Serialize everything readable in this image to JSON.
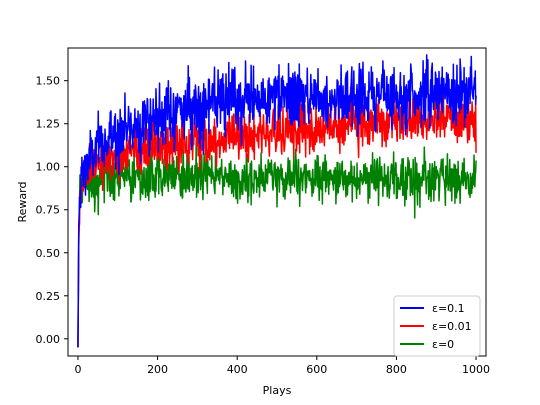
{
  "chart_data": {
    "type": "line",
    "title": "",
    "xlabel": "Plays",
    "ylabel": "Reward",
    "xlim": [
      -25,
      1025
    ],
    "ylim": [
      -0.1,
      1.69
    ],
    "xticks": [
      0,
      200,
      400,
      600,
      800,
      1000
    ],
    "yticks": [
      0.0,
      0.25,
      0.5,
      0.75,
      1.0,
      1.25,
      1.5
    ],
    "xtick_labels": [
      "0",
      "200",
      "400",
      "600",
      "800",
      "1000"
    ],
    "ytick_labels": [
      "0.00",
      "0.25",
      "0.50",
      "0.75",
      "1.00",
      "1.25",
      "1.50"
    ],
    "grid": false,
    "legend_position": "bottom-right",
    "series": [
      {
        "name": "ε=0.1",
        "color": "#0000ff",
        "x": [
          0,
          2,
          5,
          10,
          20,
          30,
          50,
          75,
          100,
          150,
          200,
          250,
          300,
          350,
          400,
          450,
          500,
          550,
          600,
          650,
          700,
          750,
          800,
          850,
          900,
          950,
          1000
        ],
        "y": [
          -0.05,
          0.6,
          0.85,
          0.95,
          1.0,
          1.05,
          1.1,
          1.15,
          1.2,
          1.25,
          1.3,
          1.33,
          1.35,
          1.37,
          1.38,
          1.39,
          1.4,
          1.4,
          1.41,
          1.41,
          1.41,
          1.42,
          1.42,
          1.42,
          1.42,
          1.43,
          1.43
        ],
        "noise": 0.09
      },
      {
        "name": "ε=0.01",
        "color": "#ff0000",
        "x": [
          0,
          2,
          5,
          10,
          20,
          30,
          50,
          75,
          100,
          150,
          200,
          250,
          300,
          350,
          400,
          450,
          500,
          550,
          600,
          650,
          700,
          750,
          800,
          850,
          900,
          950,
          1000
        ],
        "y": [
          -0.05,
          0.55,
          0.8,
          0.92,
          0.97,
          1.0,
          1.02,
          1.04,
          1.06,
          1.09,
          1.11,
          1.13,
          1.15,
          1.16,
          1.18,
          1.19,
          1.2,
          1.21,
          1.22,
          1.23,
          1.24,
          1.25,
          1.26,
          1.27,
          1.27,
          1.28,
          1.28
        ],
        "noise": 0.07
      },
      {
        "name": "ε=0",
        "color": "#008000",
        "x": [
          0,
          2,
          5,
          10,
          20,
          30,
          50,
          75,
          100,
          150,
          200,
          250,
          300,
          350,
          400,
          450,
          500,
          550,
          600,
          650,
          700,
          750,
          800,
          850,
          900,
          950,
          1000
        ],
        "y": [
          -0.05,
          0.6,
          0.8,
          0.88,
          0.9,
          0.91,
          0.92,
          0.93,
          0.93,
          0.93,
          0.94,
          0.94,
          0.94,
          0.94,
          0.93,
          0.93,
          0.93,
          0.93,
          0.93,
          0.93,
          0.93,
          0.93,
          0.93,
          0.93,
          0.93,
          0.93,
          0.93
        ],
        "noise": 0.07
      }
    ]
  }
}
